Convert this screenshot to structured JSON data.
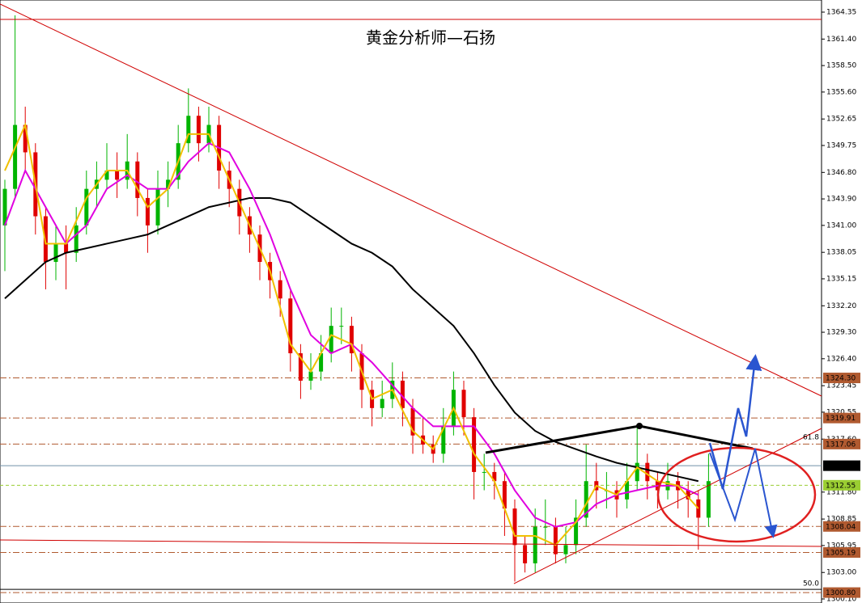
{
  "chart_data": {
    "type": "candlestick",
    "title": "黄金分析师—石扬",
    "ylim": [
      1300.1,
      1364.35
    ],
    "yticks": [
      1364.35,
      {
        "value": 1361.4,
        "label": "1361.40"
      },
      {
        "value": 1358.5,
        "label": "1358.50"
      },
      {
        "value": 1355.6,
        "label": "1355.60"
      },
      1352.65,
      1349.75,
      {
        "value": 1346.8,
        "label": "1346.80"
      },
      {
        "value": 1343.9,
        "label": "1343.90"
      },
      {
        "value": 1341,
        "label": "1341.00"
      },
      1338.05,
      1335.15,
      {
        "value": 1332.2,
        "label": "1332.20"
      },
      {
        "value": 1329.3,
        "label": "1329.30"
      },
      {
        "value": 1326.4,
        "label": "1326.40"
      },
      1323.45,
      1320.55,
      {
        "value": 1317.6,
        "label": "1317.60"
      },
      {
        "value": 1311.8,
        "label": "1311.80"
      },
      1308.85,
      1305.95,
      {
        "value": 1303,
        "label": "1303.00"
      },
      {
        "value": 1300.1,
        "label": "1300.10"
      }
    ],
    "up_color": "#00b400",
    "down_color": "#e00000",
    "candles": [
      [
        1341,
        1346,
        1336,
        1345
      ],
      [
        1345,
        1364,
        1344,
        1352
      ],
      [
        1352,
        1354,
        1347,
        1349
      ],
      [
        1349,
        1350,
        1340,
        1342
      ],
      [
        1342,
        1343,
        1334,
        1337
      ],
      [
        1337,
        1341,
        1335,
        1339
      ],
      [
        1339,
        1341,
        1334,
        1338
      ],
      [
        1338,
        1343,
        1337,
        1341
      ],
      [
        1341,
        1347,
        1340,
        1345
      ],
      [
        1345,
        1348,
        1343,
        1346
      ],
      [
        1346,
        1350,
        1345,
        1347
      ],
      [
        1347,
        1349,
        1344,
        1346
      ],
      [
        1346,
        1351,
        1345,
        1348
      ],
      [
        1348,
        1349,
        1342,
        1344
      ],
      [
        1344,
        1345,
        1338,
        1341
      ],
      [
        1341,
        1347,
        1340,
        1345
      ],
      [
        1345,
        1348,
        1343,
        1346
      ],
      [
        1346,
        1352,
        1345,
        1350
      ],
      [
        1350,
        1356,
        1349,
        1353
      ],
      [
        1353,
        1354,
        1348,
        1350
      ],
      [
        1350,
        1354,
        1349,
        1352
      ],
      [
        1352,
        1353,
        1345,
        1347
      ],
      [
        1347,
        1348,
        1343,
        1345
      ],
      [
        1345,
        1346,
        1340,
        1342
      ],
      [
        1342,
        1343,
        1338,
        1340
      ],
      [
        1340,
        1341,
        1335,
        1337
      ],
      [
        1337,
        1338,
        1333,
        1335
      ],
      [
        1335,
        1336,
        1331,
        1333
      ],
      [
        1333,
        1334,
        1325,
        1327
      ],
      [
        1327,
        1328,
        1322,
        1324
      ],
      [
        1324,
        1327,
        1323,
        1325
      ],
      [
        1325,
        1329,
        1324,
        1327
      ],
      [
        1327,
        1332,
        1326,
        1330
      ],
      [
        1330,
        1332,
        1328,
        1330
      ],
      [
        1330,
        1331,
        1325,
        1327
      ],
      [
        1327,
        1328,
        1321,
        1323
      ],
      [
        1323,
        1324,
        1319,
        1321
      ],
      [
        1321,
        1324,
        1320,
        1322
      ],
      [
        1322,
        1326,
        1321,
        1324
      ],
      [
        1324,
        1325,
        1319,
        1321
      ],
      [
        1321,
        1322,
        1316,
        1318
      ],
      [
        1318,
        1320,
        1316,
        1317
      ],
      [
        1317,
        1318,
        1315,
        1316
      ],
      [
        1316,
        1321,
        1315,
        1319
      ],
      [
        1319,
        1325,
        1318,
        1323
      ],
      [
        1323,
        1324,
        1318,
        1320
      ],
      [
        1320,
        1321,
        1311,
        1314
      ],
      [
        1314,
        1316,
        1312,
        1314
      ],
      [
        1314,
        1315,
        1311,
        1313
      ],
      [
        1313,
        1314,
        1307,
        1310
      ],
      [
        1310,
        1311,
        1302,
        1306
      ],
      [
        1306,
        1307,
        1303,
        1304
      ],
      [
        1304,
        1310,
        1303,
        1308
      ],
      [
        1308,
        1311,
        1306,
        1308
      ],
      [
        1308,
        1309,
        1304,
        1305
      ],
      [
        1305,
        1308,
        1304,
        1306
      ],
      [
        1306,
        1311,
        1305,
        1309
      ],
      [
        1309,
        1317,
        1308,
        1313
      ],
      [
        1313,
        1315,
        1310,
        1312
      ],
      [
        1312,
        1314,
        1310,
        1312
      ],
      [
        1312,
        1313,
        1309,
        1311
      ],
      [
        1311,
        1315,
        1310,
        1313
      ],
      [
        1313,
        1319,
        1312,
        1315
      ],
      [
        1315,
        1316,
        1311,
        1313
      ],
      [
        1313,
        1314,
        1310,
        1312
      ],
      [
        1312,
        1315,
        1311,
        1313
      ],
      [
        1313,
        1314,
        1310,
        1312
      ],
      [
        1312,
        1313,
        1309,
        1311
      ],
      [
        1311,
        1312,
        1305.5,
        1309
      ],
      [
        1309,
        1316,
        1308,
        1313
      ]
    ],
    "ma_x": [
      0,
      2,
      4,
      6,
      8,
      10,
      12,
      14,
      16,
      18,
      20,
      22,
      24,
      26,
      28,
      30,
      32,
      34,
      36,
      38,
      40,
      42,
      44,
      46,
      48,
      50,
      52,
      54,
      56,
      58,
      60,
      62,
      64,
      66,
      68
    ],
    "moving_averages": [
      {
        "color": "#000000",
        "values": [
          1333,
          1335,
          1337,
          1338,
          1338.5,
          1339,
          1339.5,
          1340,
          1341,
          1342,
          1343,
          1343.5,
          1344,
          1344,
          1343.5,
          1342,
          1340.5,
          1339,
          1338,
          1336.5,
          1334,
          1332,
          1330,
          1327,
          1323.5,
          1320.5,
          1318.5,
          1317.3,
          1316.5,
          1315.7,
          1315,
          1314.5,
          1314,
          1313.5,
          1313
        ]
      },
      {
        "color": "#e000e0",
        "values": [
          1341,
          1347,
          1343,
          1339,
          1341,
          1345,
          1346.5,
          1345,
          1345,
          1348,
          1350,
          1349,
          1345,
          1340,
          1334,
          1329,
          1327,
          1328,
          1326,
          1323.5,
          1321,
          1319,
          1319,
          1319,
          1316,
          1312,
          1309,
          1308,
          1308.5,
          1310.5,
          1311.5,
          1312,
          1312.5,
          1312.5,
          1311.5
        ]
      },
      {
        "color": "#f0c000",
        "values": [
          1347,
          1352,
          1339,
          1339,
          1344,
          1347,
          1347,
          1343,
          1345,
          1351,
          1351,
          1346,
          1341,
          1336,
          1328,
          1325,
          1329,
          1328,
          1322,
          1323,
          1318.5,
          1316.5,
          1321,
          1316,
          1313,
          1307,
          1307,
          1306,
          1308.5,
          1312.5,
          1311.5,
          1314.5,
          1313,
          1312.5,
          1310
        ]
      }
    ],
    "levels": [
      {
        "value": 1324.3,
        "label": "1324.30",
        "color": "#b05a30",
        "style": "dashdot"
      },
      {
        "value": 1319.91,
        "label": "1319.91",
        "color": "#b05a30",
        "style": "dashdot"
      },
      {
        "value": 1317.06,
        "label": "1317.06",
        "color": "#b05a30",
        "style": "dashdot"
      },
      {
        "value": 1314.69,
        "label": "1314.69",
        "color": "#000000",
        "style": "solid"
      },
      {
        "value": 1312.55,
        "label": "1312.55",
        "color": "#9acd32",
        "style": "dashed"
      },
      {
        "value": 1308.04,
        "label": "1308.04",
        "color": "#b05a30",
        "style": "dashdot"
      },
      {
        "value": 1305.19,
        "label": "1305.19",
        "color": "#b05a30",
        "style": "dashdot"
      },
      {
        "value": 1300.8,
        "label": "1300.80",
        "color": "#b05a30",
        "style": "dashdot"
      }
    ],
    "fib_levels": [
      {
        "ratio": 61.8,
        "price": 1317.2
      },
      {
        "ratio": {
          "value": 50,
          "label": "50.0"
        },
        "price": 1301.15
      }
    ]
  }
}
